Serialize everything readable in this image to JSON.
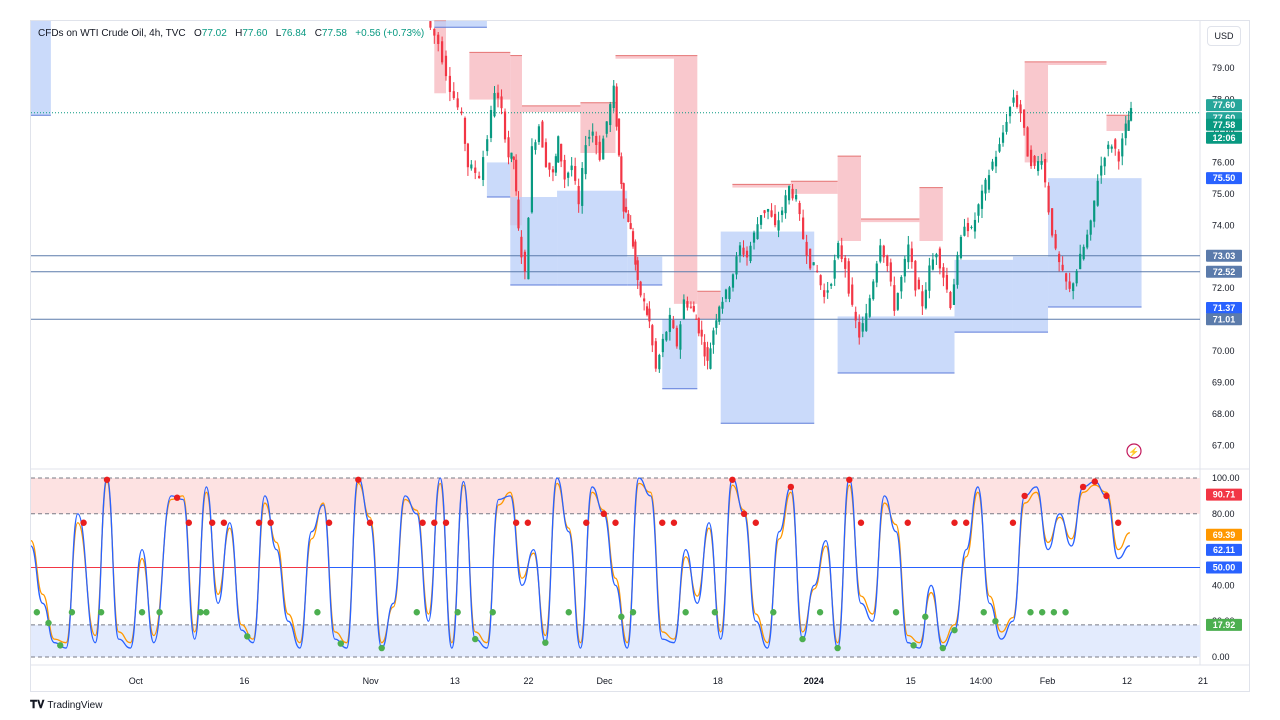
{
  "header": {
    "symbol": "CFDs on WTI Crude Oil, 4h, TVC",
    "open_label": "O",
    "open": "77.02",
    "high_label": "H",
    "high": "77.60",
    "low_label": "L",
    "low": "76.84",
    "close_label": "C",
    "close": "77.58",
    "change": "+0.56 (+0.73%)"
  },
  "currency_button": "USD",
  "footer": {
    "brand": "TradingView"
  },
  "colors": {
    "up": "#089981",
    "down": "#f23645",
    "supply_zone": "#f7b5bc",
    "demand_zone": "#b8cdf8",
    "level_line": "#5b7bab",
    "stoch_k": "#2962ff",
    "stoch_d": "#ff9800",
    "dot_top": "#e91e1e",
    "dot_bottom": "#4caf50"
  },
  "chart_data": [
    {
      "type": "candlestick",
      "title": "CFDs on WTI Crude Oil, 4h, TVC",
      "ylim": [
        66.5,
        80.5
      ],
      "y_ticks": [
        "79.00",
        "78.00",
        "77.00",
        "76.00",
        "75.00",
        "74.00",
        "73.00",
        "72.00",
        "71.00",
        "70.00",
        "69.00",
        "68.00",
        "67.00"
      ],
      "x_ticks": [
        "Oct",
        "16",
        "Nov",
        "13",
        "22",
        "Dec",
        "18",
        "2024",
        "15",
        "14:00",
        "Feb",
        "12",
        "21"
      ],
      "horizontal_levels": [
        73.03,
        72.52,
        71.01
      ],
      "price_badges": [
        {
          "value": "77.60",
          "color": "#26a69a"
        },
        {
          "value": "77.60",
          "color": "#26a69a"
        },
        {
          "value": "77.58",
          "color": "#089981"
        },
        {
          "value": "12:06",
          "color": "#089981"
        },
        {
          "value": "75.50",
          "color": "#2962ff"
        },
        {
          "value": "73.03",
          "color": "#5b7bab"
        },
        {
          "value": "72.52",
          "color": "#5b7bab"
        },
        {
          "value": "71.37",
          "color": "#2962ff"
        },
        {
          "value": "71.01",
          "color": "#5b7bab"
        }
      ],
      "supply_zones": [
        {
          "x0": 0.345,
          "x1": 0.355,
          "top": 80.5,
          "bottom": 78.2
        },
        {
          "x0": 0.375,
          "x1": 0.41,
          "top": 79.5,
          "bottom": 78.0
        },
        {
          "x0": 0.41,
          "x1": 0.42,
          "top": 79.4,
          "bottom": 74.0
        },
        {
          "x0": 0.42,
          "x1": 0.47,
          "top": 77.8,
          "bottom": 77.6
        },
        {
          "x0": 0.47,
          "x1": 0.5,
          "top": 77.9,
          "bottom": 76.3
        },
        {
          "x0": 0.5,
          "x1": 0.55,
          "top": 79.4,
          "bottom": 79.3
        },
        {
          "x0": 0.55,
          "x1": 0.57,
          "top": 79.4,
          "bottom": 71.5
        },
        {
          "x0": 0.57,
          "x1": 0.59,
          "top": 71.9,
          "bottom": 71.0
        },
        {
          "x0": 0.6,
          "x1": 0.65,
          "top": 75.3,
          "bottom": 75.2
        },
        {
          "x0": 0.65,
          "x1": 0.69,
          "top": 75.4,
          "bottom": 75.0
        },
        {
          "x0": 0.69,
          "x1": 0.71,
          "top": 76.2,
          "bottom": 73.5
        },
        {
          "x0": 0.71,
          "x1": 0.76,
          "top": 74.2,
          "bottom": 74.1
        },
        {
          "x0": 0.76,
          "x1": 0.78,
          "top": 75.2,
          "bottom": 73.5
        },
        {
          "x0": 0.85,
          "x1": 0.87,
          "top": 79.2,
          "bottom": 76.0
        },
        {
          "x0": 0.87,
          "x1": 0.92,
          "top": 79.2,
          "bottom": 79.1
        },
        {
          "x0": 0.92,
          "x1": 0.94,
          "top": 77.5,
          "bottom": 77.0
        }
      ],
      "demand_zones": [
        {
          "x0": 0.0,
          "x1": 0.017,
          "top": 80.5,
          "bottom": 77.5
        },
        {
          "x0": 0.345,
          "x1": 0.39,
          "top": 80.5,
          "bottom": 80.3
        },
        {
          "x0": 0.39,
          "x1": 0.41,
          "top": 76.0,
          "bottom": 74.9
        },
        {
          "x0": 0.41,
          "x1": 0.45,
          "top": 74.9,
          "bottom": 72.1
        },
        {
          "x0": 0.45,
          "x1": 0.51,
          "top": 75.1,
          "bottom": 72.1
        },
        {
          "x0": 0.51,
          "x1": 0.54,
          "top": 73.0,
          "bottom": 72.1
        },
        {
          "x0": 0.54,
          "x1": 0.57,
          "top": 71.0,
          "bottom": 68.8
        },
        {
          "x0": 0.59,
          "x1": 0.67,
          "top": 73.8,
          "bottom": 67.7
        },
        {
          "x0": 0.69,
          "x1": 0.79,
          "top": 71.1,
          "bottom": 69.3
        },
        {
          "x0": 0.79,
          "x1": 0.84,
          "top": 72.9,
          "bottom": 70.6
        },
        {
          "x0": 0.84,
          "x1": 0.87,
          "top": 73.0,
          "bottom": 70.6
        },
        {
          "x0": 0.87,
          "x1": 0.95,
          "top": 75.5,
          "bottom": 71.4
        }
      ],
      "price_path": [
        [
          0.34,
          80.5
        ],
        [
          0.35,
          79.8
        ],
        [
          0.36,
          78.4
        ],
        [
          0.37,
          77.4
        ],
        [
          0.375,
          75.9
        ],
        [
          0.385,
          75.6
        ],
        [
          0.392,
          76.8
        ],
        [
          0.398,
          78.3
        ],
        [
          0.404,
          77.6
        ],
        [
          0.41,
          76.2
        ],
        [
          0.414,
          76.1
        ],
        [
          0.418,
          73.8
        ],
        [
          0.424,
          72.4
        ],
        [
          0.43,
          76.4
        ],
        [
          0.436,
          77.2
        ],
        [
          0.442,
          76.0
        ],
        [
          0.448,
          75.6
        ],
        [
          0.452,
          76.7
        ],
        [
          0.458,
          75.5
        ],
        [
          0.464,
          75.9
        ],
        [
          0.47,
          74.6
        ],
        [
          0.476,
          76.7
        ],
        [
          0.482,
          77.0
        ],
        [
          0.488,
          76.2
        ],
        [
          0.494,
          77.3
        ],
        [
          0.5,
          78.3
        ],
        [
          0.504,
          76.2
        ],
        [
          0.508,
          74.6
        ],
        [
          0.512,
          74.2
        ],
        [
          0.516,
          73.4
        ],
        [
          0.52,
          72.1
        ],
        [
          0.526,
          71.5
        ],
        [
          0.53,
          70.9
        ],
        [
          0.536,
          69.4
        ],
        [
          0.542,
          70.3
        ],
        [
          0.548,
          71.0
        ],
        [
          0.554,
          70.2
        ],
        [
          0.56,
          71.6
        ],
        [
          0.566,
          71.4
        ],
        [
          0.57,
          71.0
        ],
        [
          0.575,
          70.4
        ],
        [
          0.58,
          69.6
        ],
        [
          0.585,
          70.7
        ],
        [
          0.59,
          71.5
        ],
        [
          0.596,
          71.8
        ],
        [
          0.602,
          72.5
        ],
        [
          0.608,
          73.3
        ],
        [
          0.614,
          73.0
        ],
        [
          0.62,
          73.7
        ],
        [
          0.626,
          74.4
        ],
        [
          0.632,
          74.5
        ],
        [
          0.638,
          73.9
        ],
        [
          0.644,
          74.5
        ],
        [
          0.65,
          75.2
        ],
        [
          0.656,
          74.8
        ],
        [
          0.662,
          73.6
        ],
        [
          0.668,
          72.8
        ],
        [
          0.674,
          72.5
        ],
        [
          0.68,
          71.7
        ],
        [
          0.686,
          72.3
        ],
        [
          0.692,
          73.3
        ],
        [
          0.698,
          72.7
        ],
        [
          0.704,
          71.3
        ],
        [
          0.71,
          70.5
        ],
        [
          0.716,
          71.1
        ],
        [
          0.722,
          72.3
        ],
        [
          0.728,
          73.5
        ],
        [
          0.734,
          72.7
        ],
        [
          0.74,
          71.4
        ],
        [
          0.746,
          72.3
        ],
        [
          0.752,
          73.3
        ],
        [
          0.758,
          72.1
        ],
        [
          0.764,
          71.5
        ],
        [
          0.77,
          72.6
        ],
        [
          0.776,
          73.2
        ],
        [
          0.782,
          72.4
        ],
        [
          0.788,
          71.5
        ],
        [
          0.794,
          72.9
        ],
        [
          0.8,
          74.1
        ],
        [
          0.806,
          73.8
        ],
        [
          0.812,
          74.6
        ],
        [
          0.818,
          75.3
        ],
        [
          0.824,
          76.0
        ],
        [
          0.83,
          76.5
        ],
        [
          0.836,
          77.4
        ],
        [
          0.842,
          78.1
        ],
        [
          0.848,
          77.6
        ],
        [
          0.854,
          76.3
        ],
        [
          0.86,
          75.8
        ],
        [
          0.866,
          76.2
        ],
        [
          0.872,
          74.5
        ],
        [
          0.878,
          73.1
        ],
        [
          0.884,
          72.4
        ],
        [
          0.89,
          71.9
        ],
        [
          0.896,
          72.6
        ],
        [
          0.902,
          73.3
        ],
        [
          0.908,
          74.0
        ],
        [
          0.914,
          75.5
        ],
        [
          0.92,
          76.3
        ],
        [
          0.926,
          76.6
        ],
        [
          0.932,
          76.2
        ],
        [
          0.938,
          77.1
        ],
        [
          0.942,
          77.58
        ]
      ]
    },
    {
      "type": "line",
      "title": "",
      "ylim": [
        0,
        100
      ],
      "y_ticks": [
        "100.00",
        "80.00",
        "40.00",
        "20.00",
        "0.00"
      ],
      "reference_levels": [
        80,
        50,
        17.92
      ],
      "value_badges": [
        {
          "value": "90.71",
          "color": "#f23645"
        },
        {
          "value": "69.39",
          "color": "#ff9800"
        },
        {
          "value": "62.11",
          "color": "#2962ff"
        },
        {
          "value": "50.00",
          "color": "#2962ff"
        },
        {
          "value": "17.92",
          "color": "#4caf50"
        }
      ],
      "series": [
        {
          "x": [
            0.0,
            0.01,
            0.02,
            0.03,
            0.04,
            0.055,
            0.065,
            0.075,
            0.085,
            0.095,
            0.105,
            0.12,
            0.13,
            0.14,
            0.15,
            0.16,
            0.17,
            0.18,
            0.19,
            0.2,
            0.21,
            0.22,
            0.23,
            0.24,
            0.25,
            0.26,
            0.27,
            0.28,
            0.29,
            0.3,
            0.31,
            0.32,
            0.33,
            0.34,
            0.35,
            0.36,
            0.37,
            0.38,
            0.39,
            0.4,
            0.41,
            0.42,
            0.43,
            0.44,
            0.45,
            0.46,
            0.47,
            0.48,
            0.49,
            0.5,
            0.51,
            0.52,
            0.53,
            0.54,
            0.55,
            0.56,
            0.57,
            0.58,
            0.59,
            0.6,
            0.61,
            0.62,
            0.63,
            0.64,
            0.65,
            0.66,
            0.67,
            0.68,
            0.69,
            0.7,
            0.71,
            0.72,
            0.73,
            0.74,
            0.75,
            0.76,
            0.77,
            0.78,
            0.79,
            0.8,
            0.81,
            0.82,
            0.83,
            0.84,
            0.85,
            0.86,
            0.87,
            0.88,
            0.89,
            0.9,
            0.91,
            0.92,
            0.93,
            0.94
          ],
          "values": [
            62,
            30,
            8,
            5,
            80,
            8,
            100,
            10,
            5,
            60,
            8,
            90,
            88,
            10,
            95,
            30,
            75,
            15,
            8,
            90,
            60,
            20,
            5,
            70,
            85,
            10,
            5,
            100,
            75,
            5,
            30,
            90,
            80,
            20,
            100,
            5,
            98,
            10,
            5,
            88,
            90,
            40,
            60,
            8,
            100,
            70,
            5,
            95,
            80,
            40,
            5,
            100,
            90,
            10,
            8,
            60,
            30,
            75,
            10,
            100,
            80,
            20,
            5,
            70,
            95,
            10,
            40,
            65,
            5,
            100,
            30,
            20,
            90,
            70,
            8,
            5,
            40,
            5,
            15,
            60,
            95,
            30,
            10,
            20,
            90,
            95,
            60,
            80,
            62,
            95,
            98,
            90,
            55,
            62.11
          ]
        },
        {
          "x": [
            0.0,
            0.01,
            0.02,
            0.03,
            0.04,
            0.055,
            0.065,
            0.075,
            0.085,
            0.095,
            0.105,
            0.12,
            0.13,
            0.14,
            0.15,
            0.16,
            0.17,
            0.18,
            0.19,
            0.2,
            0.21,
            0.22,
            0.23,
            0.24,
            0.25,
            0.26,
            0.27,
            0.28,
            0.29,
            0.3,
            0.31,
            0.32,
            0.33,
            0.34,
            0.35,
            0.36,
            0.37,
            0.38,
            0.39,
            0.4,
            0.41,
            0.42,
            0.43,
            0.44,
            0.45,
            0.46,
            0.47,
            0.48,
            0.49,
            0.5,
            0.51,
            0.52,
            0.53,
            0.54,
            0.55,
            0.56,
            0.57,
            0.58,
            0.59,
            0.6,
            0.61,
            0.62,
            0.63,
            0.64,
            0.65,
            0.66,
            0.67,
            0.68,
            0.69,
            0.7,
            0.71,
            0.72,
            0.73,
            0.74,
            0.75,
            0.76,
            0.77,
            0.78,
            0.79,
            0.8,
            0.81,
            0.82,
            0.83,
            0.84,
            0.85,
            0.86,
            0.87,
            0.88,
            0.89,
            0.9,
            0.91,
            0.92,
            0.93,
            0.94
          ],
          "values": [
            65,
            35,
            10,
            8,
            75,
            12,
            98,
            14,
            8,
            55,
            12,
            88,
            90,
            14,
            92,
            35,
            72,
            18,
            10,
            86,
            64,
            24,
            8,
            66,
            86,
            14,
            8,
            97,
            78,
            8,
            28,
            88,
            82,
            24,
            97,
            8,
            96,
            14,
            8,
            85,
            92,
            44,
            58,
            12,
            97,
            72,
            8,
            92,
            82,
            44,
            8,
            97,
            92,
            14,
            10,
            56,
            34,
            72,
            14,
            96,
            82,
            24,
            8,
            66,
            92,
            14,
            38,
            62,
            8,
            96,
            34,
            24,
            86,
            74,
            12,
            8,
            36,
            8,
            18,
            56,
            92,
            34,
            14,
            22,
            86,
            92,
            64,
            78,
            66,
            92,
            96,
            92,
            60,
            69.39
          ]
        }
      ],
      "top_markers": [
        0.045,
        0.065,
        0.125,
        0.135,
        0.155,
        0.165,
        0.195,
        0.205,
        0.255,
        0.28,
        0.29,
        0.335,
        0.345,
        0.355,
        0.415,
        0.425,
        0.475,
        0.49,
        0.5,
        0.54,
        0.55,
        0.6,
        0.61,
        0.62,
        0.65,
        0.7,
        0.71,
        0.75,
        0.79,
        0.8,
        0.84,
        0.85,
        0.9,
        0.91,
        0.92,
        0.93
      ],
      "bottom_markers": [
        0.005,
        0.015,
        0.025,
        0.035,
        0.06,
        0.095,
        0.11,
        0.145,
        0.15,
        0.185,
        0.245,
        0.265,
        0.3,
        0.33,
        0.365,
        0.38,
        0.395,
        0.44,
        0.46,
        0.505,
        0.515,
        0.56,
        0.585,
        0.635,
        0.66,
        0.675,
        0.69,
        0.74,
        0.755,
        0.765,
        0.78,
        0.79,
        0.815,
        0.825,
        0.855,
        0.865,
        0.875,
        0.885
      ]
    }
  ]
}
